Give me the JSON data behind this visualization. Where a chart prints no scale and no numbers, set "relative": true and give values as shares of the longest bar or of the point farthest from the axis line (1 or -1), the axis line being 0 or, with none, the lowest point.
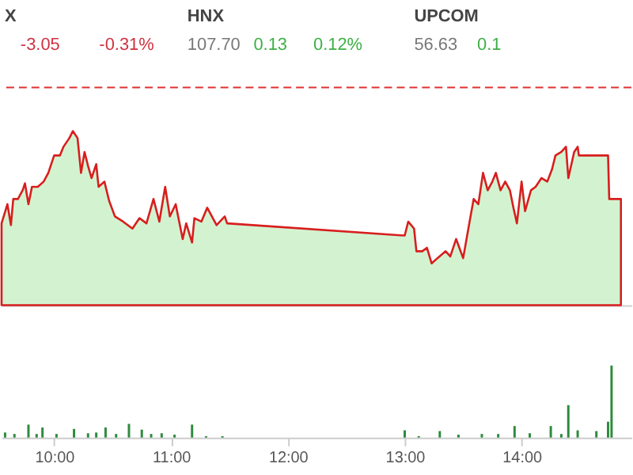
{
  "chart_data": [
    {
      "type": "area",
      "relative": true,
      "tick_labels": false,
      "xlim": [
        9.55,
        14.94
      ],
      "annotations": [
        "X",
        "-3.05",
        "-0.31%",
        "HNX",
        "107.70",
        "0.13",
        "0.12%",
        "UPCOM",
        "56.63",
        "0.1"
      ],
      "ref_lines": [
        {
          "axis": "y",
          "value": 1.25,
          "color": "#e03030",
          "line_style": "dashed"
        }
      ],
      "series": [
        {
          "color": "#d81e1e",
          "x": [
            9.55,
            9.6,
            9.63,
            9.65,
            9.69,
            9.73,
            9.75,
            9.78,
            9.81,
            9.86,
            9.91,
            9.95,
            10.0,
            10.05,
            10.08,
            10.13,
            10.16,
            10.2,
            10.23,
            10.26,
            10.29,
            10.32,
            10.36,
            10.38,
            10.43,
            10.47,
            10.52,
            10.59,
            10.67,
            10.73,
            10.79,
            10.85,
            10.9,
            10.95,
            10.99,
            11.04,
            11.1,
            11.13,
            11.18,
            11.2,
            11.26,
            11.31,
            11.39,
            11.46,
            11.48,
            13.0,
            13.03,
            13.08,
            13.1,
            13.15,
            13.19,
            13.23,
            13.28,
            13.35,
            13.39,
            13.44,
            13.5,
            13.55,
            13.59,
            13.63,
            13.67,
            13.71,
            13.75,
            13.78,
            13.82,
            13.86,
            13.9,
            13.93,
            13.96,
            14.0,
            14.03,
            14.08,
            14.12,
            14.17,
            14.22,
            14.26,
            14.29,
            14.34,
            14.38,
            14.4,
            14.45,
            14.48,
            14.49,
            14.74,
            14.75,
            14.85
          ],
          "values": [
            0.47,
            0.58,
            0.46,
            0.61,
            0.61,
            0.66,
            0.7,
            0.58,
            0.68,
            0.68,
            0.71,
            0.76,
            0.86,
            0.86,
            0.91,
            0.96,
            1,
            0.96,
            0.76,
            0.88,
            0.8,
            0.73,
            0.81,
            0.68,
            0.71,
            0.6,
            0.51,
            0.48,
            0.44,
            0.5,
            0.47,
            0.61,
            0.48,
            0.68,
            0.51,
            0.58,
            0.38,
            0.47,
            0.36,
            0.5,
            0.48,
            0.56,
            0.46,
            0.51,
            0.47,
            0.4,
            0.48,
            0.44,
            0.31,
            0.31,
            0.33,
            0.24,
            0.27,
            0.31,
            0.28,
            0.38,
            0.27,
            0.46,
            0.61,
            0.58,
            0.76,
            0.66,
            0.71,
            0.76,
            0.66,
            0.71,
            0.66,
            0.56,
            0.47,
            0.71,
            0.54,
            0.66,
            0.68,
            0.73,
            0.71,
            0.78,
            0.86,
            0.88,
            0.91,
            0.73,
            0.88,
            0.91,
            0.86,
            0.86,
            0.61,
            0.61
          ]
        }
      ]
    },
    {
      "type": "bar",
      "relative": true,
      "tick_labels": "x",
      "xlim": [
        9.55,
        14.94
      ],
      "xticks": [
        {
          "value": 10,
          "label": "10:00"
        },
        {
          "value": 11,
          "label": "11:00"
        },
        {
          "value": 12,
          "label": "12:00"
        },
        {
          "value": 13,
          "label": "13:00"
        },
        {
          "value": 14,
          "label": "14:00"
        }
      ],
      "series": [
        {
          "color": "#2e8b3e",
          "x": [
            9.58,
            9.66,
            9.78,
            9.85,
            9.9,
            10.02,
            10.17,
            10.29,
            10.36,
            10.44,
            10.53,
            10.64,
            10.75,
            10.83,
            10.92,
            11.03,
            11.18,
            11.3,
            11.44,
            13.0,
            13.12,
            13.3,
            13.46,
            13.66,
            13.8,
            13.94,
            14.07,
            14.25,
            14.34,
            14.4,
            14.48,
            14.64,
            14.74,
            14.77
          ],
          "values": [
            0.07,
            0.05,
            0.18,
            0.05,
            0.14,
            0.05,
            0.12,
            0.06,
            0.07,
            0.14,
            0.05,
            0.19,
            0.11,
            0.05,
            0.06,
            0.04,
            0.18,
            0.02,
            0.02,
            0.1,
            0.02,
            0.09,
            0.04,
            0.05,
            0.05,
            0.16,
            0.06,
            0.16,
            0.05,
            0.45,
            0.1,
            0.09,
            0.22,
            1
          ]
        }
      ]
    }
  ]
}
